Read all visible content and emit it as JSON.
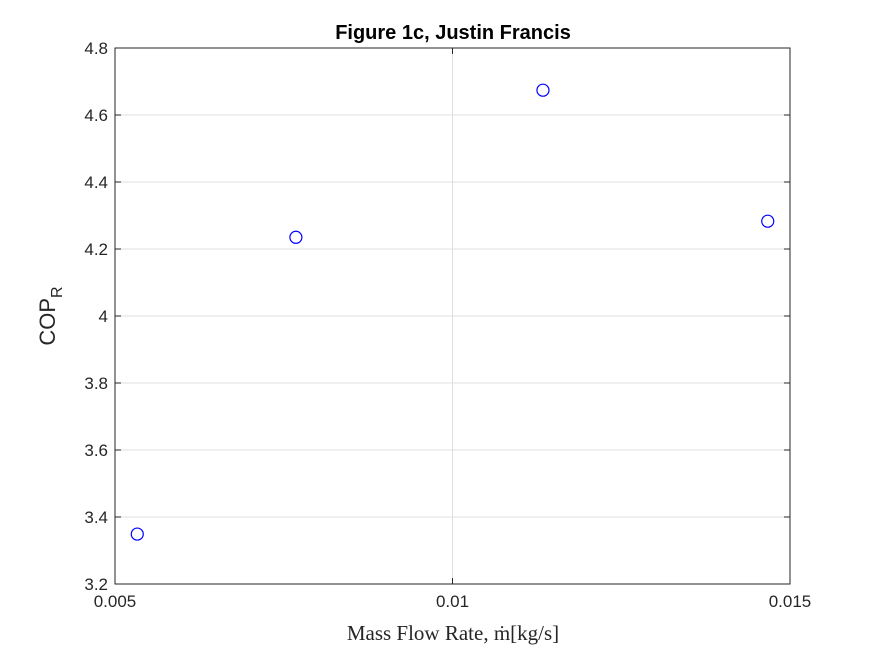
{
  "chart_data": {
    "type": "scatter",
    "title": "Figure 1c, Justin Francis",
    "xlabel": "Mass Flow Rate, ṁ[kg/s]",
    "ylabel": "COP",
    "ylabel_subscript": "R",
    "xlim": [
      0.005,
      0.015
    ],
    "ylim": [
      3.2,
      4.8
    ],
    "xticks": [
      0.005,
      0.01,
      0.015
    ],
    "xtick_labels": [
      "0.005",
      "0.01",
      "0.015"
    ],
    "yticks": [
      3.2,
      3.4,
      3.6,
      3.8,
      4.0,
      4.2,
      4.4,
      4.6,
      4.8
    ],
    "ytick_labels": [
      "3.2",
      "3.4",
      "3.6",
      "3.8",
      "4",
      "4.2",
      "4.4",
      "4.6",
      "4.8"
    ],
    "grid": true,
    "marker": "circle-open",
    "color": "#0000ff",
    "series": [
      {
        "x": [
          0.00533,
          0.00768,
          0.01134,
          0.01467
        ],
        "y": [
          3.349,
          4.235,
          4.674,
          4.283
        ]
      }
    ]
  }
}
